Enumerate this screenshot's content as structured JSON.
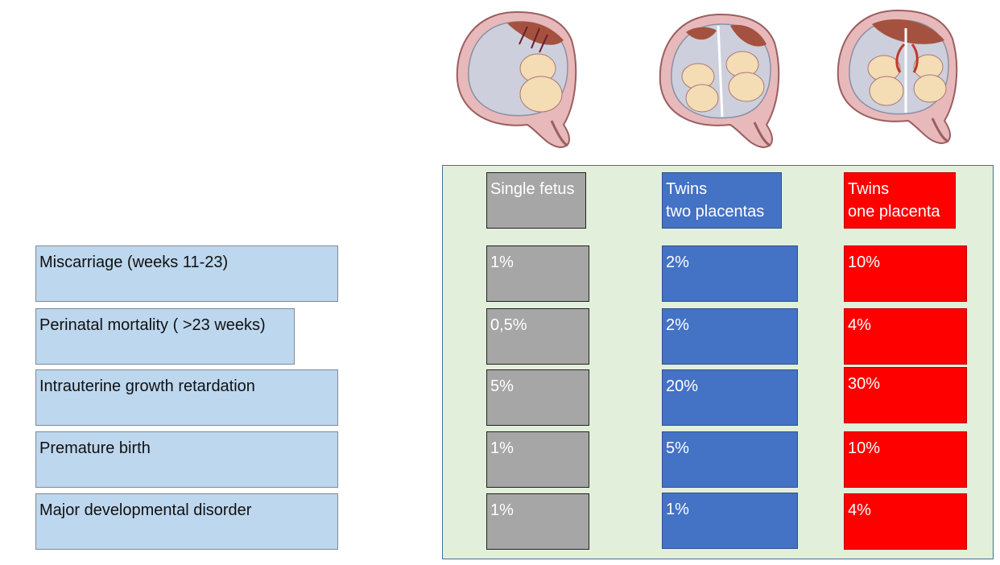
{
  "columns": [
    {
      "key": "single",
      "header": "Single fetus"
    },
    {
      "key": "twins_two",
      "header": "Twins\ntwo placentas"
    },
    {
      "key": "twins_one",
      "header": "Twins\none placenta"
    }
  ],
  "rows": [
    {
      "label": "Miscarriage (weeks 11-23)",
      "values": [
        "1%",
        "2%",
        "10%"
      ]
    },
    {
      "label": "Perinatal mortality ( >23 weeks)",
      "values": [
        "0,5%",
        "2%",
        "4%"
      ]
    },
    {
      "label": "Intrauterine growth retardation",
      "values": [
        "5%",
        "20%",
        "30%"
      ]
    },
    {
      "label": "Premature birth",
      "values": [
        "1%",
        "5%",
        "10%"
      ]
    },
    {
      "label": "Major developmental disorder",
      "values": [
        "1%",
        "1%",
        "4%"
      ]
    }
  ],
  "colors": {
    "label_fill": "#bdd7ee",
    "panel_fill": "#e2efda",
    "single": "#a6a6a6",
    "twins_two": "#4472c4",
    "twins_one": "#ff0000"
  },
  "illustrations": [
    "uterus-single-fetus-illustration",
    "uterus-twins-two-placentas-illustration",
    "uterus-twins-one-placenta-illustration"
  ]
}
